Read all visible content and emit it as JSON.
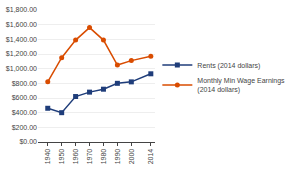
{
  "chart_data": {
    "type": "line",
    "x": [
      1940,
      1950,
      1960,
      1970,
      1980,
      1990,
      2000,
      2014
    ],
    "series": [
      {
        "name": "Rents (2014 dollars)",
        "color": "#1f3d7a",
        "marker": "square",
        "values": [
          460,
          400,
          620,
          680,
          720,
          800,
          820,
          930
        ]
      },
      {
        "name": "Monthly Min Wage Earnings\n(2014 dollars)",
        "color": "#d94c00",
        "marker": "circle",
        "values": [
          820,
          1150,
          1390,
          1560,
          1390,
          1050,
          1110,
          1170
        ]
      }
    ],
    "xlim": [
      1933,
      2017
    ],
    "xticks": [
      1940,
      1950,
      1960,
      1970,
      1980,
      1990,
      2000,
      2014
    ],
    "ylim": [
      0,
      1800
    ],
    "yticks": [
      {
        "value": 0,
        "label": "$0.00"
      },
      {
        "value": 200,
        "label": "$200.00"
      },
      {
        "value": 400,
        "label": "$400.00"
      },
      {
        "value": 600,
        "label": "$600.00"
      },
      {
        "value": 800,
        "label": "$800.00"
      },
      {
        "value": 1000,
        "label": "$1,000.00"
      },
      {
        "value": 1200,
        "label": "$1,200.00"
      },
      {
        "value": 1400,
        "label": "$1,400.00"
      },
      {
        "value": 1600,
        "label": "$1,600.00"
      },
      {
        "value": 1800,
        "label": "$1,800.00"
      }
    ],
    "grid": true,
    "legend": "right"
  }
}
